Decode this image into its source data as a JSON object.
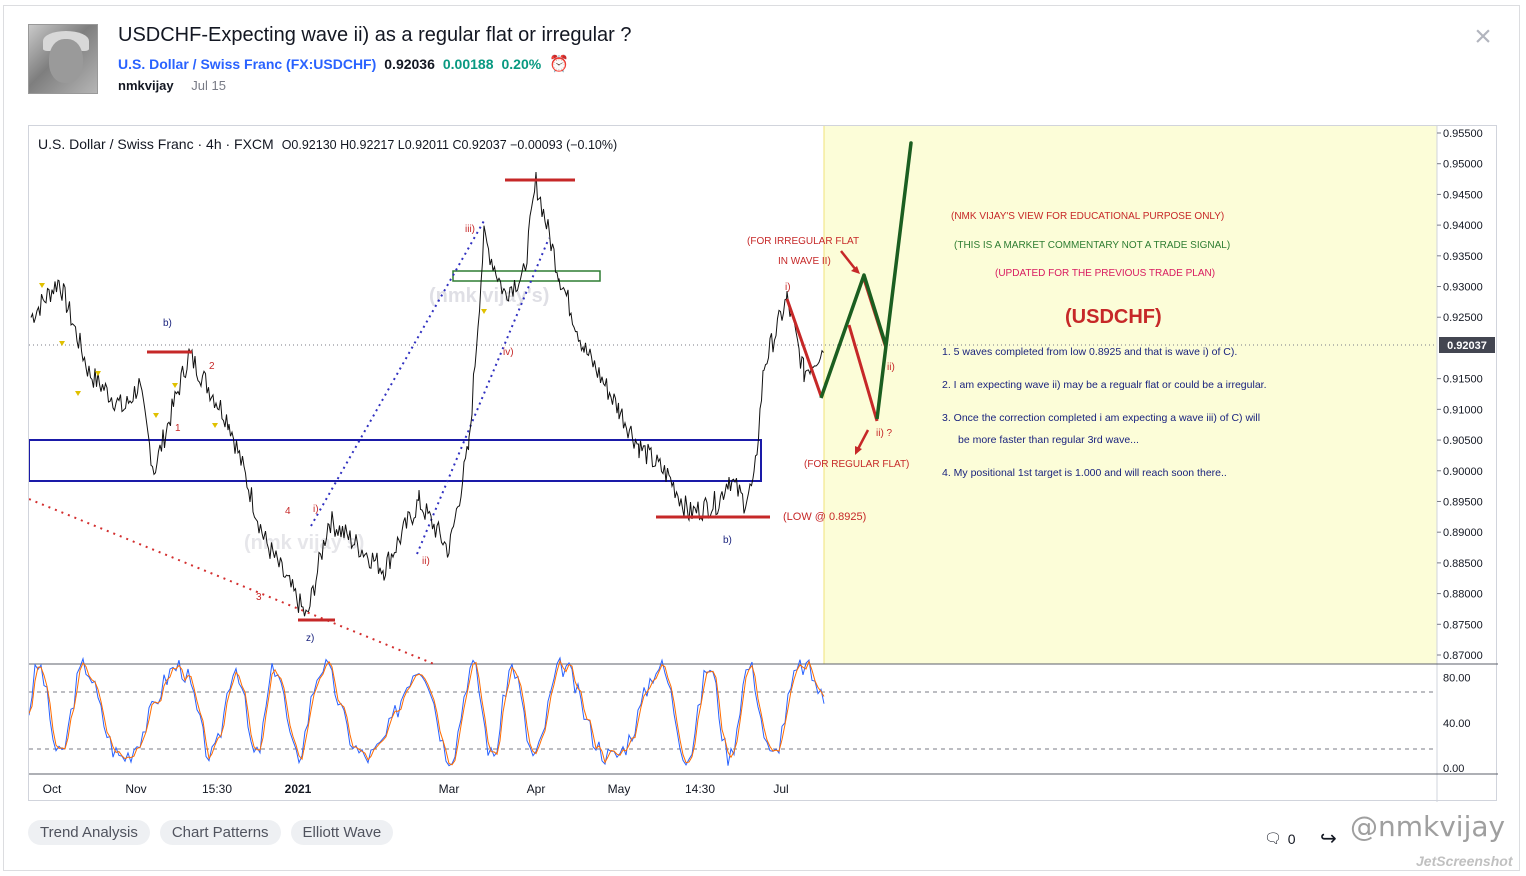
{
  "header": {
    "title": "USDCHF-Expecting wave ii) as a regular flat or irregular ?",
    "symbol_full": "U.S. Dollar / Swiss Franc (FX:USDCHF)",
    "price": "0.92036",
    "change": "0.00188",
    "change_pct": "0.20%",
    "author": "nmkvijay",
    "date": "Jul 15"
  },
  "chart": {
    "legend_text": "U.S. Dollar / Swiss Franc · 4h · FXCM",
    "ohlc": "O0.92130 H0.92217 L0.92011 C0.92037 −0.00093 (−0.10%)",
    "last_price_label": "0.92037",
    "watermark": "(nmk vijay's)"
  },
  "chart_data": {
    "type": "line",
    "price_axis_ticks": [
      "0.95500",
      "0.95000",
      "0.94500",
      "0.94000",
      "0.93500",
      "0.93000",
      "0.92500",
      "0.92037",
      "0.91500",
      "0.91000",
      "0.90500",
      "0.90000",
      "0.89500",
      "0.89000",
      "0.88500",
      "0.88000",
      "0.87500",
      "0.87000"
    ],
    "time_axis_ticks": [
      "Oct",
      "Nov",
      "15:30",
      "2021",
      "Mar",
      "Apr",
      "May",
      "14:30",
      "Jul"
    ],
    "oscillator_ticks": [
      "80.00",
      "40.00",
      "0.00"
    ],
    "key_points": [
      {
        "x": "Oct",
        "y": 0.93
      },
      {
        "x": "Oct",
        "y": 0.915
      },
      {
        "x": "Nov",
        "y": 0.918
      },
      {
        "x": "Nov",
        "y": 0.899
      },
      {
        "x": "Nov",
        "y": 0.92
      },
      {
        "x": "15:30",
        "y": 0.889
      },
      {
        "x": "15:30",
        "y": 0.885
      },
      {
        "x": "2021",
        "y": 0.876
      },
      {
        "x": "2021",
        "y": 0.891
      },
      {
        "x": "Mar",
        "y": 0.888
      },
      {
        "x": "Mar",
        "y": 0.937
      },
      {
        "x": "Mar",
        "y": 0.931
      },
      {
        "x": "Apr",
        "y": 0.947
      },
      {
        "x": "Apr",
        "y": 0.925
      },
      {
        "x": "May",
        "y": 0.911
      },
      {
        "x": "May",
        "y": 0.897
      },
      {
        "x": "14:30",
        "y": 0.893
      },
      {
        "x": "14:30",
        "y": 0.898
      },
      {
        "x": "Jul",
        "y": 0.929
      },
      {
        "x": "Jul",
        "y": 0.917
      },
      {
        "x": "Jul",
        "y": 0.92
      }
    ],
    "oscillator_levels": [
      80,
      20
    ],
    "annotations": {
      "irregular": [
        "(FOR IRREGULAR FLAT",
        "IN WAVE II)"
      ],
      "regular": "(FOR REGULAR FLAT)",
      "low": "(LOW @ 0.8925)",
      "notes": [
        "(NMK VIJAY'S VIEW FOR EDUCATIONAL PURPOSE ONLY)",
        "(THIS IS A MARKET COMMENTARY NOT A TRADE SIGNAL)",
        "(UPDATED FOR THE PREVIOUS TRADE PLAN)"
      ],
      "symbol": "(USDCHF)",
      "points": [
        "1. 5 waves completed from low 0.8925 and that is wave i) of C).",
        "2. I am expecting wave ii) may be a regualr flat or could be a irregular.",
        "3. Once the correction completed i am expecting a wave iii) of C) will",
        "be more faster than regular 3rd wave...",
        "4. My positional 1st target is 1.000 and will reach soon there.."
      ],
      "wave_labels": [
        "b)",
        "2",
        "1",
        "4",
        "3",
        "i)",
        "z)",
        "ii)",
        "iii)",
        "iv)",
        "i)",
        "ii)",
        "ii) ?",
        "b)"
      ]
    }
  },
  "tags": [
    "Trend Analysis",
    "Chart Patterns",
    "Elliott Wave"
  ],
  "footer": {
    "comments_count": "0",
    "watermark": "@nmkvijay",
    "capture_mark": "JetScreenshot"
  },
  "colors": {
    "accent": "#2962ff",
    "up": "#089981",
    "wave_red": "#c62828",
    "forecast_green": "#1b5e20",
    "projection_bg": "#fcfdd8"
  }
}
